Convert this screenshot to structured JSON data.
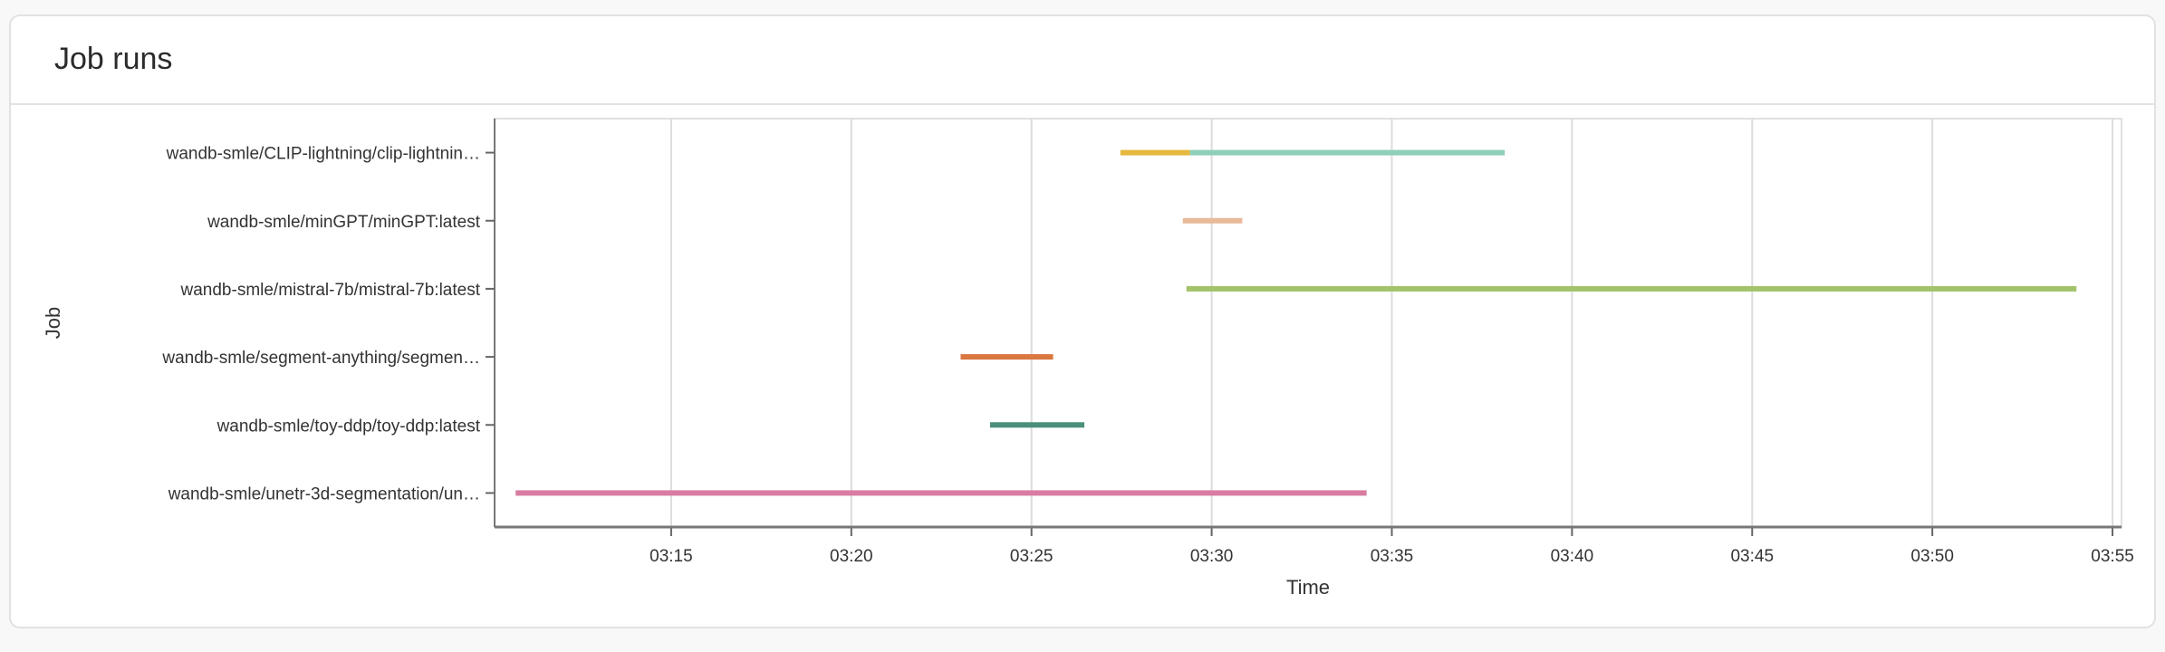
{
  "panel": {
    "title": "Job runs"
  },
  "chart_data": {
    "type": "gantt",
    "xlabel": "Time",
    "ylabel": "Job",
    "xlim": [
      "03:10:06",
      "03:55:15"
    ],
    "xticks": [
      "03:15",
      "03:20",
      "03:25",
      "03:30",
      "03:35",
      "03:40",
      "03:45",
      "03:50",
      "03:55"
    ],
    "grid": true,
    "categories": [
      "wandb-smle/CLIP-lightning/clip-lightnin…",
      "wandb-smle/minGPT/minGPT:latest",
      "wandb-smle/mistral-7b/mistral-7b:latest",
      "wandb-smle/segment-anything/segmen…",
      "wandb-smle/toy-ddp/toy-ddp:latest",
      "wandb-smle/unetr-3d-segmentation/un…"
    ],
    "runs": [
      {
        "job": 0,
        "start": "03:27:28",
        "end": "03:29:24",
        "color": "#e5b83f"
      },
      {
        "job": 0,
        "start": "03:29:24",
        "end": "03:38:08",
        "color": "#8fcfb9"
      },
      {
        "job": 1,
        "start": "03:29:12",
        "end": "03:30:51",
        "color": "#e9b998"
      },
      {
        "job": 2,
        "start": "03:29:18",
        "end": "03:54:00",
        "color": "#a3c36b"
      },
      {
        "job": 3,
        "start": "03:23:02",
        "end": "03:25:36",
        "color": "#d9773f"
      },
      {
        "job": 4,
        "start": "03:23:51",
        "end": "03:26:28",
        "color": "#4a8f7c"
      },
      {
        "job": 5,
        "start": "03:10:41",
        "end": "03:34:18",
        "color": "#d97ca1"
      }
    ]
  }
}
